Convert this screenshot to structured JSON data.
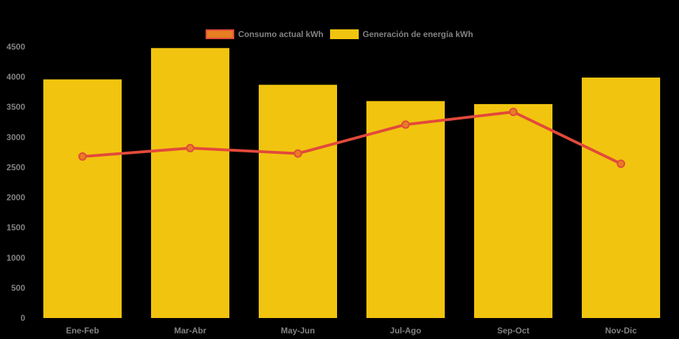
{
  "background": "#000000",
  "text_color": "#828282",
  "legend": {
    "items": [
      {
        "label": "Consumo actual kWh",
        "fill": "#E67E22",
        "border": "#E2493B"
      },
      {
        "label": "Generación de energía kWh",
        "fill": "#F1C40F",
        "border": "#F1C40F"
      }
    ]
  },
  "chart_data": {
    "type": "bar",
    "title": "",
    "xlabel": "",
    "ylabel": "",
    "categories": [
      "Ene-Feb",
      "Mar-Abr",
      "May-Jun",
      "Jul-Ago",
      "Sep-Oct",
      "Nov-Dic"
    ],
    "series": [
      {
        "name": "Generación de energía kWh",
        "type": "bar",
        "color": "#F1C40F",
        "values": [
          3960,
          4480,
          3870,
          3600,
          3550,
          3990
        ]
      },
      {
        "name": "Consumo actual kWh",
        "type": "line",
        "color": "#E2493B",
        "point_fill": "#E67E22",
        "values": [
          2680,
          2820,
          2730,
          3210,
          3420,
          2560
        ]
      }
    ],
    "ylim": [
      0,
      4500
    ],
    "yticks": [
      0,
      500,
      1000,
      1500,
      2000,
      2500,
      3000,
      3500,
      4000,
      4500
    ],
    "grid": false,
    "legend_position": "top"
  }
}
